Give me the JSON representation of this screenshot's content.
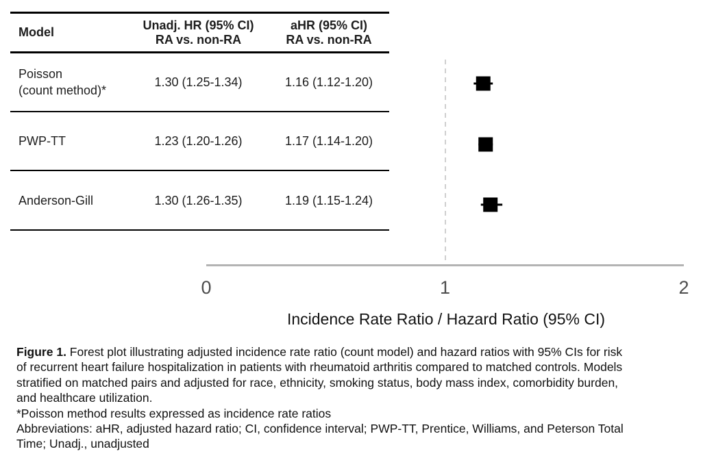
{
  "header_bg_color": "#bfbfbf",
  "table": {
    "headers": [
      "Model",
      "Unadj. HR (95% CI)\nRA vs. non-RA",
      "aHR (95% CI)\nRA vs. non-RA"
    ],
    "rows": [
      {
        "model": "Poisson\n(count method)*",
        "unadj_hr": "1.30 (1.25-1.34)",
        "ahr": "1.16 (1.12-1.20)"
      },
      {
        "model": "PWP-TT",
        "unadj_hr": "1.23 (1.20-1.26)",
        "ahr": "1.17 (1.14-1.20)"
      },
      {
        "model": "Anderson-Gill",
        "unadj_hr": "1.30 (1.26-1.35)",
        "ahr": "1.19 (1.15-1.24)"
      }
    ]
  },
  "chart_data": {
    "type": "scatter",
    "subtype": "forest-plot",
    "categories": [
      "Poisson (count method)*",
      "PWP-TT",
      "Anderson-Gill"
    ],
    "series": [
      {
        "name": "aHR (95% CI) RA vs. non-RA",
        "points": [
          {
            "label": "Poisson (count method)*",
            "value": 1.16,
            "ci_low": 1.12,
            "ci_high": 1.2
          },
          {
            "label": "PWP-TT",
            "value": 1.17,
            "ci_low": 1.14,
            "ci_high": 1.2
          },
          {
            "label": "Anderson-Gill",
            "value": 1.19,
            "ci_low": 1.15,
            "ci_high": 1.24
          }
        ]
      }
    ],
    "xlabel": "Incidence Rate Ratio / Hazard Ratio (95% CI)",
    "x_ticks": [
      0,
      1,
      2
    ],
    "xlim": [
      0,
      2
    ],
    "reference_line": 1,
    "grid": false,
    "marker_color": "#000000",
    "axis_color": "#b3b3b3",
    "reference_line_color": "#cfcfcf",
    "tick_label_color": "#4d4d4d"
  },
  "caption": {
    "figure_label": "Figure 1.",
    "body": " Forest plot illustrating adjusted incidence rate ratio (count model) and hazard ratios with 95% CIs for risk\nof recurrent heart failure hospitalization in patients with rheumatoid arthritis compared to matched controls. Models\nstratified on matched pairs and adjusted for race, ethnicity, smoking status, body mass index, comorbidity burden,\nand healthcare utilization.",
    "footnote_asterisk": "*Poisson method results expressed as incidence rate ratios",
    "footnote_abbreviations": "Abbreviations: aHR, adjusted hazard ratio; CI, confidence interval; PWP-TT, Prentice, Williams, and Peterson Total\nTime; Unadj., unadjusted"
  }
}
